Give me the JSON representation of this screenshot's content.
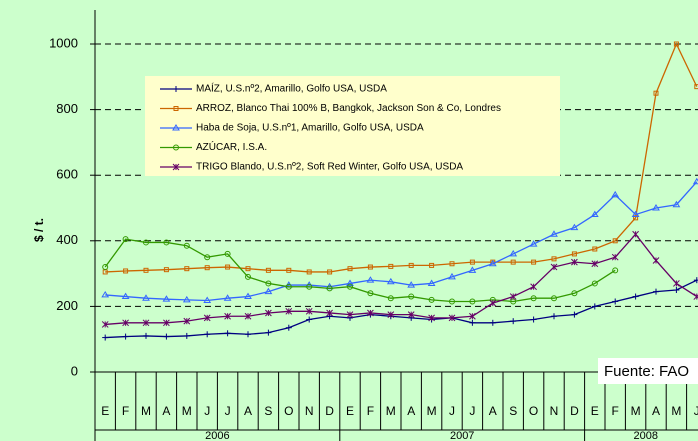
{
  "chart_data": {
    "type": "line",
    "y_label": "$ / t.",
    "annotation": "Fuente: FAO",
    "categories": [
      "E",
      "F",
      "M",
      "A",
      "M",
      "J",
      "J",
      "A",
      "S",
      "O",
      "N",
      "D",
      "E",
      "F",
      "M",
      "A",
      "M",
      "J",
      "J",
      "A",
      "S",
      "O",
      "N",
      "D",
      "E",
      "F",
      "M",
      "A",
      "M",
      "J"
    ],
    "years": [
      "2006",
      "2007",
      "2008"
    ],
    "ylim": [
      0,
      1000
    ],
    "yticks": [
      0,
      200,
      400,
      600,
      800,
      1000
    ],
    "grid": true,
    "series": [
      {
        "name": "MAÍZ, U.S.nº2, Amarillo, Golfo USA, USDA",
        "color": "#000080",
        "marker": "plus",
        "values": [
          105,
          108,
          110,
          108,
          110,
          115,
          118,
          115,
          120,
          135,
          160,
          170,
          165,
          175,
          170,
          165,
          160,
          165,
          150,
          150,
          155,
          160,
          170,
          175,
          200,
          215,
          230,
          245,
          250,
          280
        ]
      },
      {
        "name": "ARROZ, Blanco Thai 100% B, Bangkok, Jackson Son & Co, Londres",
        "color": "#cc6600",
        "marker": "square",
        "values": [
          305,
          308,
          310,
          312,
          315,
          318,
          320,
          315,
          310,
          310,
          305,
          305,
          315,
          320,
          322,
          325,
          325,
          330,
          335,
          335,
          335,
          335,
          345,
          360,
          375,
          400,
          470,
          850,
          1000,
          870
        ]
      },
      {
        "name": "Haba de Soja, U.S.nº1, Amarillo, Golfo USA, USDA",
        "color": "#3366ff",
        "marker": "triangle",
        "values": [
          235,
          230,
          225,
          222,
          220,
          218,
          225,
          230,
          245,
          265,
          265,
          260,
          270,
          280,
          275,
          265,
          270,
          290,
          310,
          330,
          360,
          390,
          420,
          440,
          480,
          540,
          480,
          500,
          510,
          580
        ]
      },
      {
        "name": "AZÚCAR, I.S.A.",
        "color": "#339900",
        "marker": "circle",
        "values": [
          320,
          405,
          395,
          395,
          385,
          350,
          360,
          290,
          270,
          260,
          260,
          255,
          260,
          240,
          225,
          230,
          220,
          215,
          215,
          220,
          215,
          225,
          225,
          240,
          270,
          310,
          null,
          null,
          null,
          null
        ]
      },
      {
        "name": "TRIGO Blando, U.S.nº2, Soft Red Winter, Golfo USA, USDA",
        "color": "#660066",
        "marker": "asterisk",
        "values": [
          145,
          150,
          150,
          150,
          155,
          165,
          170,
          170,
          180,
          185,
          185,
          180,
          175,
          180,
          175,
          175,
          165,
          165,
          170,
          210,
          230,
          260,
          320,
          335,
          330,
          350,
          420,
          340,
          270,
          230
        ]
      }
    ]
  }
}
